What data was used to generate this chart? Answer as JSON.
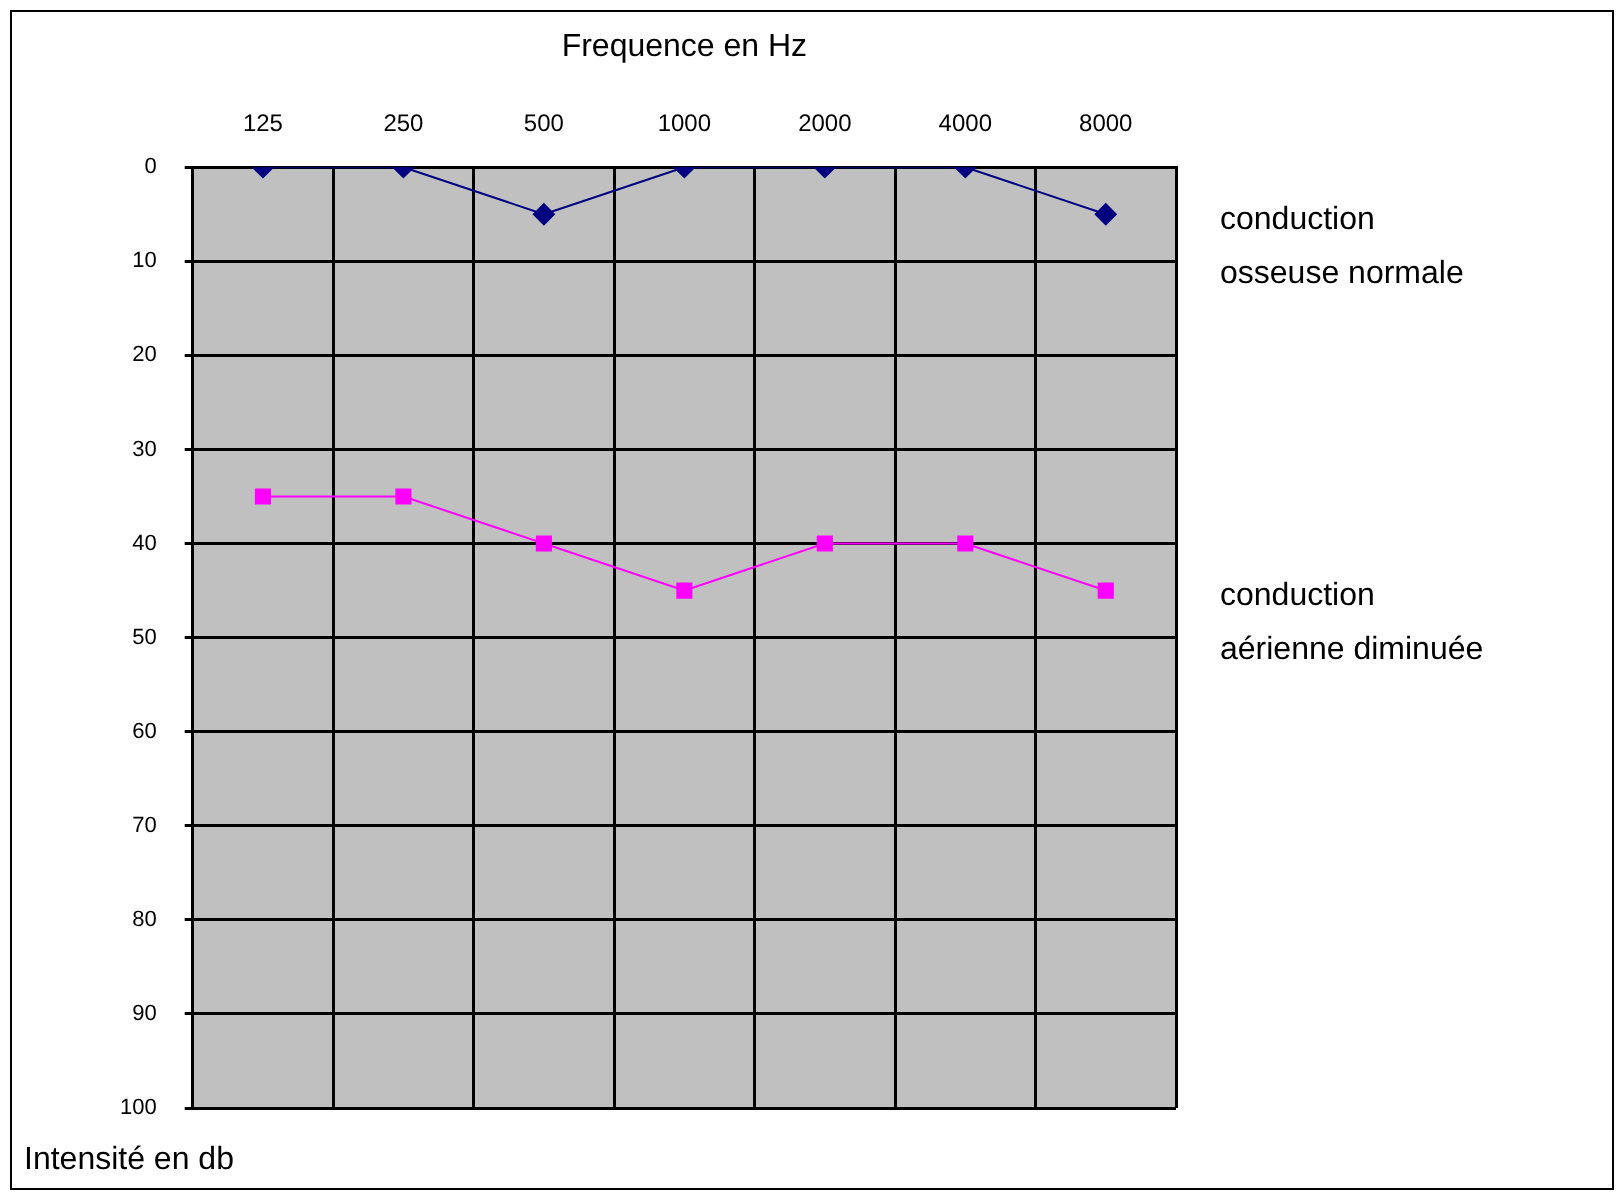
{
  "chart_data": {
    "type": "line",
    "xlabel": "Frequence en Hz",
    "ylabel": "Intensité en db",
    "categories": [
      "125",
      "250",
      "500",
      "1000",
      "2000",
      "4000",
      "8000"
    ],
    "ylim": [
      100,
      0
    ],
    "yticks": [
      0,
      10,
      20,
      30,
      40,
      50,
      60,
      70,
      80,
      90,
      100
    ],
    "grid": true,
    "legend": false,
    "line_style": "solid",
    "series": [
      {
        "name": "conduction osseuse normale",
        "color": "#000080",
        "marker": "diamond",
        "values": [
          0,
          0,
          5,
          0,
          0,
          0,
          5
        ]
      },
      {
        "name": "conduction aérienne diminuée",
        "color": "#ff00ff",
        "marker": "square",
        "values": [
          35,
          35,
          40,
          45,
          40,
          40,
          45
        ]
      }
    ]
  }
}
